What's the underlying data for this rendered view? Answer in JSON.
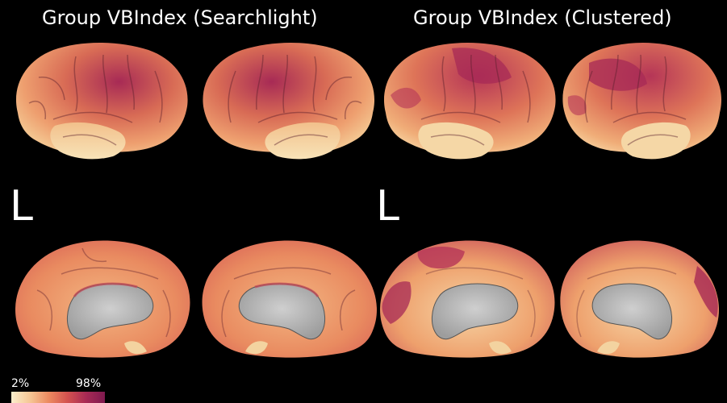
{
  "titles": {
    "left": "Group VBIndex (Searchlight)",
    "right": "Group VBIndex (Clustered)"
  },
  "hemisphere_labels": {
    "left": "L",
    "right": "L"
  },
  "colorbar": {
    "min_label": "2%",
    "max_label": "98%",
    "colors": [
      "#fbeecb",
      "#f6c795",
      "#ec8a60",
      "#d4524f",
      "#a72a55",
      "#7f1a4f"
    ]
  },
  "colors": {
    "background": "#000000",
    "medial_wall": "#b9b9b9"
  }
}
